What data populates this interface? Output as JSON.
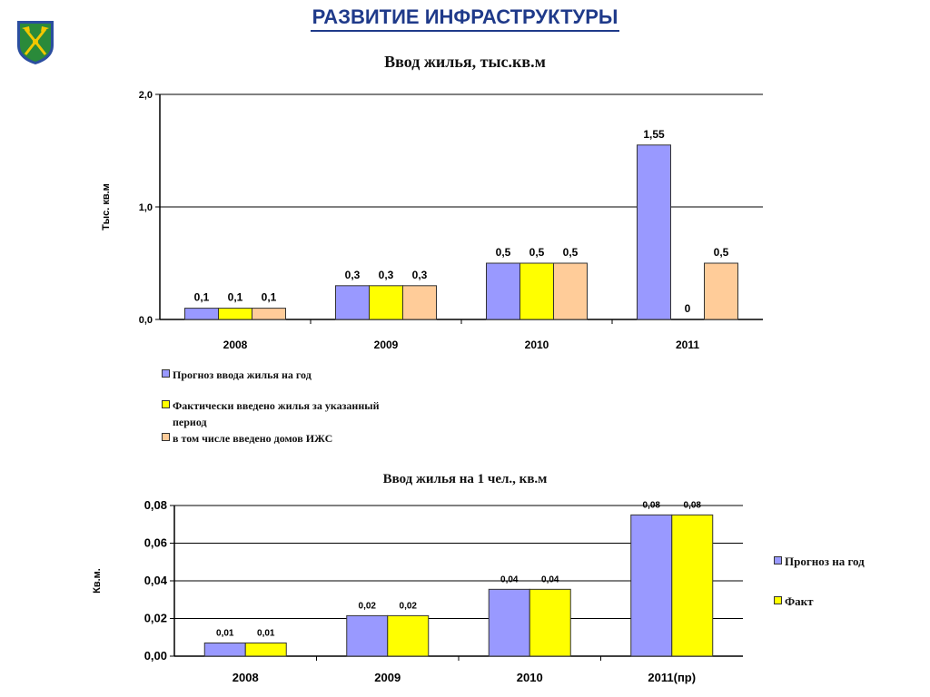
{
  "page_title": "РАЗВИТИЕ ИНФРАСТРУКТУРЫ",
  "emblem": {
    "icon": "coat-of-arms-icon",
    "colors": {
      "shield": "#2a8a3a",
      "border": "#2b4ea0",
      "tools": "#f2c700"
    }
  },
  "colors": {
    "forecast": "#9999ff",
    "fact": "#ffff00",
    "izhs": "#ffcc99",
    "title": "#1f3a8a",
    "axis": "#000000"
  },
  "chart_data": [
    {
      "type": "bar",
      "title": "Ввод жилья, тыс.кв.м",
      "ylabel": "Тыс. кв.м",
      "xlabel": "",
      "ylim": [
        0,
        2.0
      ],
      "yticks": [
        0,
        1.0,
        2.0
      ],
      "ytick_labels": [
        "0,0",
        "1,0",
        "2,0"
      ],
      "grid": true,
      "legend_position": "bottom-left",
      "categories": [
        "2008",
        "2009",
        "2010",
        "2011"
      ],
      "series": [
        {
          "name": "Прогноз ввода жилья на год",
          "color": "#9999ff",
          "values": [
            0.1,
            0.3,
            0.5,
            1.55
          ],
          "labels": [
            "0,1",
            "0,3",
            "0,5",
            "1,55"
          ]
        },
        {
          "name": "Фактически введено жилья за указанный период",
          "name_lines": [
            "Фактически введено жилья за указанный",
            "период"
          ],
          "color": "#ffff00",
          "values": [
            0.1,
            0.3,
            0.5,
            0
          ],
          "labels": [
            "0,1",
            "0,3",
            "0,5",
            "0"
          ]
        },
        {
          "name": "в том числе введено домов ИЖС",
          "color": "#ffcc99",
          "values": [
            0.1,
            0.3,
            0.5,
            0.5
          ],
          "labels": [
            "0,1",
            "0,3",
            "0,5",
            "0,5"
          ]
        }
      ]
    },
    {
      "type": "bar",
      "title": "Ввод жилья на 1 чел., кв.м",
      "ylabel": "Кв.м.",
      "xlabel": "",
      "ylim": [
        0,
        0.08
      ],
      "yticks": [
        0,
        0.02,
        0.04,
        0.06,
        0.08
      ],
      "ytick_labels": [
        "0,00",
        "0,02",
        "0,04",
        "0,06",
        "0,08"
      ],
      "grid": true,
      "legend_position": "right",
      "categories": [
        "2008",
        "2009",
        "2010",
        "2011(пр)"
      ],
      "series": [
        {
          "name": "Прогноз на год",
          "color": "#9999ff",
          "values": [
            0.007,
            0.0215,
            0.0355,
            0.075
          ],
          "labels": [
            "0,01",
            "0,02",
            "0,04",
            "0,08"
          ]
        },
        {
          "name": "Факт",
          "color": "#ffff00",
          "values": [
            0.007,
            0.0215,
            0.0355,
            0.075
          ],
          "labels": [
            "0,01",
            "0,02",
            "0,04",
            "0,08"
          ]
        }
      ]
    }
  ]
}
